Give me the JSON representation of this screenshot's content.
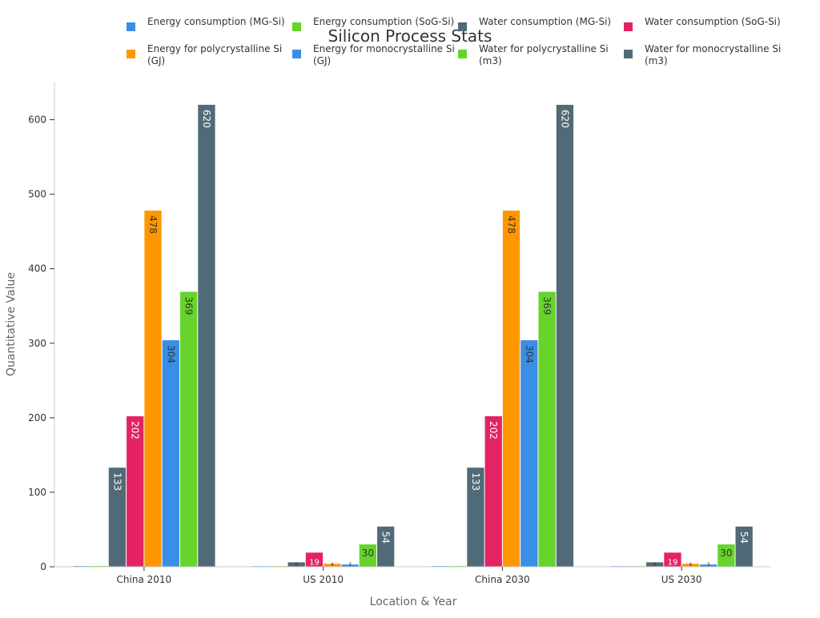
{
  "chart_data": {
    "type": "bar",
    "title": "Silicon Process Stats",
    "xlabel": "Location & Year",
    "ylabel": "Quantitative Value",
    "ylim": [
      0,
      650
    ],
    "yticks": [
      0,
      100,
      200,
      300,
      400,
      500,
      600
    ],
    "grid": false,
    "legend_position": "top",
    "categories": [
      "China 2010",
      "US 2010",
      "China 2030",
      "US 2030"
    ],
    "series": [
      {
        "name": "Energy consumption (MG-Si)",
        "color": "#3a8ee6",
        "values": [
          1,
          0,
          1,
          0
        ],
        "labels": [
          "",
          "",
          "",
          ""
        ]
      },
      {
        "name": "Energy consumption (SoG-Si)",
        "color": "#66d42b",
        "values": [
          1,
          0,
          1,
          0
        ],
        "labels": [
          "",
          "",
          "",
          ""
        ]
      },
      {
        "name": "Water consumption (MG-Si)",
        "color": "#506b77",
        "values": [
          133,
          6,
          133,
          6
        ],
        "labels": [
          "133",
          "6",
          "133",
          "6"
        ]
      },
      {
        "name": "Water consumption (SoG-Si)",
        "color": "#e32363",
        "values": [
          202,
          19,
          202,
          19
        ],
        "labels": [
          "202",
          "19",
          "202",
          "19"
        ]
      },
      {
        "name": "Energy for polycrystalline Si (GJ)",
        "color": "#ff9800",
        "values": [
          478,
          4,
          478,
          4
        ],
        "labels": [
          "478",
          "4",
          "478",
          "4"
        ]
      },
      {
        "name": "Energy for monocrystalline Si (GJ)",
        "color": "#3a8ee6",
        "values": [
          304,
          3,
          304,
          3
        ],
        "labels": [
          "304",
          "3",
          "304",
          "3"
        ]
      },
      {
        "name": "Water for polycrystalline Si (m3)",
        "color": "#66d42b",
        "values": [
          369,
          30,
          369,
          30
        ],
        "labels": [
          "369",
          "30",
          "369",
          "30"
        ]
      },
      {
        "name": "Water for monocrystalline Si (m3)",
        "color": "#506b77",
        "values": [
          620,
          54,
          620,
          54
        ],
        "labels": [
          "620",
          "54",
          "620",
          "54"
        ]
      }
    ]
  }
}
